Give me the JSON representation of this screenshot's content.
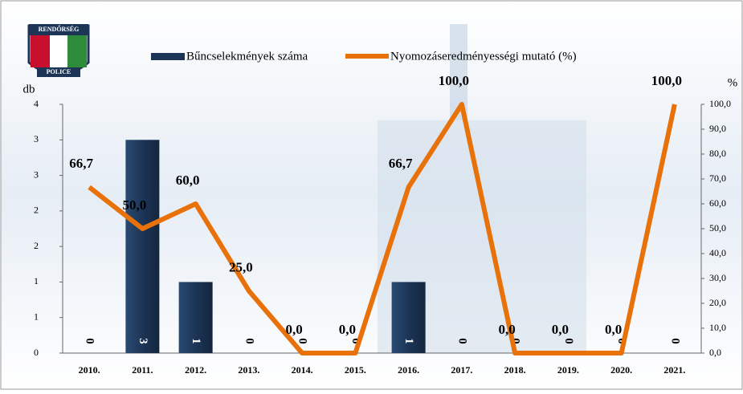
{
  "logo": {
    "top": "RENDŐRSÉG",
    "bottom": "POLICE"
  },
  "chart_data": {
    "type": "bar-line",
    "categories": [
      "2010.",
      "2011.",
      "2012.",
      "2013.",
      "2014.",
      "2015.",
      "2016.",
      "2017.",
      "2018.",
      "2019.",
      "2020.",
      "2021."
    ],
    "ylabel": "db",
    "y2label": "%",
    "ylim": [
      0,
      3.5
    ],
    "yticks": [
      0,
      {
        "value": 0.5,
        "label": "1"
      },
      1,
      {
        "value": 1.5,
        "label": "2"
      },
      2,
      {
        "value": 2.5,
        "label": "3"
      },
      3,
      {
        "value": 3.5,
        "label": "4"
      }
    ],
    "y2lim": [
      0,
      100
    ],
    "y2ticks": [
      {
        "value": 0,
        "label": "0,0"
      },
      {
        "value": 10,
        "label": "10,0"
      },
      {
        "value": 20,
        "label": "20,0"
      },
      {
        "value": 30,
        "label": "30,0"
      },
      {
        "value": 40,
        "label": "40,0"
      },
      {
        "value": 50,
        "label": "50,0"
      },
      {
        "value": 60,
        "label": "60,0"
      },
      {
        "value": 70,
        "label": "70,0"
      },
      {
        "value": 80,
        "label": "80,0"
      },
      {
        "value": 90,
        "label": "90,0"
      },
      {
        "value": 100,
        "label": "100,0"
      }
    ],
    "series": [
      {
        "name": "Bűncselekmények száma",
        "type": "bar",
        "color": "#1c3556",
        "values": [
          0,
          3,
          1,
          0,
          0,
          0,
          1,
          0,
          0,
          0,
          0,
          0
        ]
      },
      {
        "name": "Nyomozáseredményességi mutató (%)",
        "type": "line",
        "axis": "y2",
        "color": "#e8710a",
        "values": [
          66.7,
          50,
          60,
          25,
          0,
          0,
          66.7,
          100,
          0,
          0,
          0,
          100
        ],
        "value_labels": [
          "66,7",
          "50,0",
          "60,0",
          "25,0",
          "0,0",
          "0,0",
          "66,7",
          "100,0",
          "0,0",
          "0,0",
          "0,0",
          "100,0"
        ]
      }
    ]
  }
}
